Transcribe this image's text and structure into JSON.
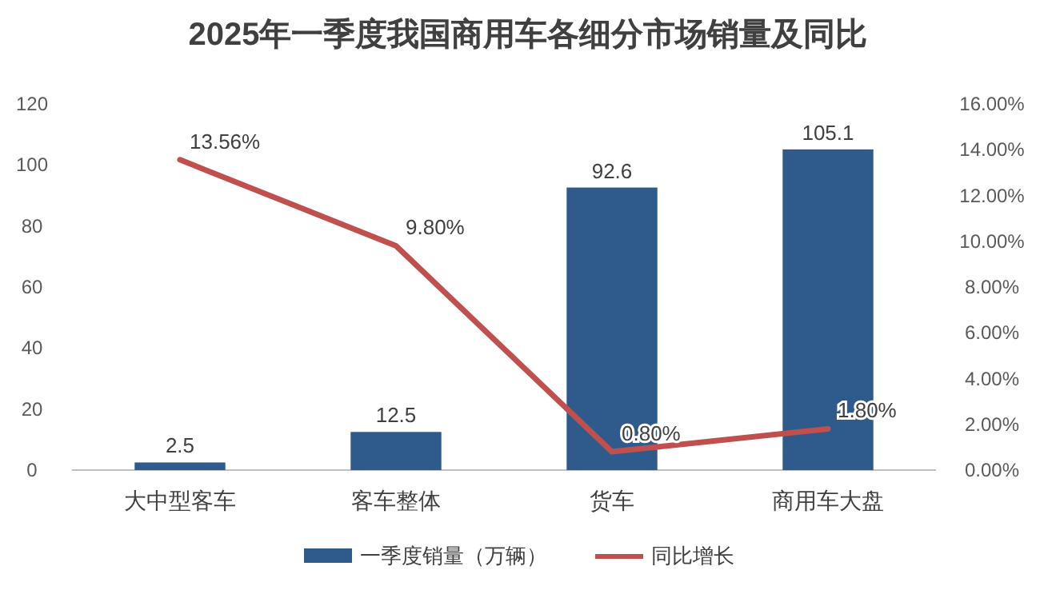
{
  "chart_data": {
    "type": "bar",
    "title": "2025年一季度我国商用车各细分市场销量及同比",
    "categories": [
      "大中型客车",
      "客车整体",
      "货车",
      "商用车大盘"
    ],
    "series": [
      {
        "name": "一季度销量（万辆）",
        "color": "#2f5a8c",
        "values": [
          2.5,
          12.5,
          92.6,
          105.1
        ],
        "value_labels": [
          "2.5",
          "12.5",
          "92.6",
          "105.1"
        ]
      },
      {
        "name": "同比增长",
        "type": "line",
        "axis": "y2",
        "color": "#c0504d",
        "values": [
          13.56,
          9.8,
          0.8,
          1.8
        ],
        "value_labels": [
          "13.56%",
          "9.80%",
          "0.80%",
          "1.80%"
        ]
      }
    ],
    "ylim": [
      0,
      120
    ],
    "yticks": [
      0,
      20,
      40,
      60,
      80,
      100,
      120
    ],
    "y2lim": [
      0,
      16
    ],
    "y2ticks": [
      {
        "value": 0,
        "label": "0.00%"
      },
      {
        "value": 2,
        "label": "2.00%"
      },
      {
        "value": 4,
        "label": "4.00%"
      },
      {
        "value": 6,
        "label": "6.00%"
      },
      {
        "value": 8,
        "label": "8.00%"
      },
      {
        "value": 10,
        "label": "10.00%"
      },
      {
        "value": 12,
        "label": "12.00%"
      },
      {
        "value": 14,
        "label": "14.00%"
      },
      {
        "value": 16,
        "label": "16.00%"
      }
    ],
    "grid": false,
    "legend": "bottom",
    "marker": "none",
    "line_style": "solid"
  }
}
